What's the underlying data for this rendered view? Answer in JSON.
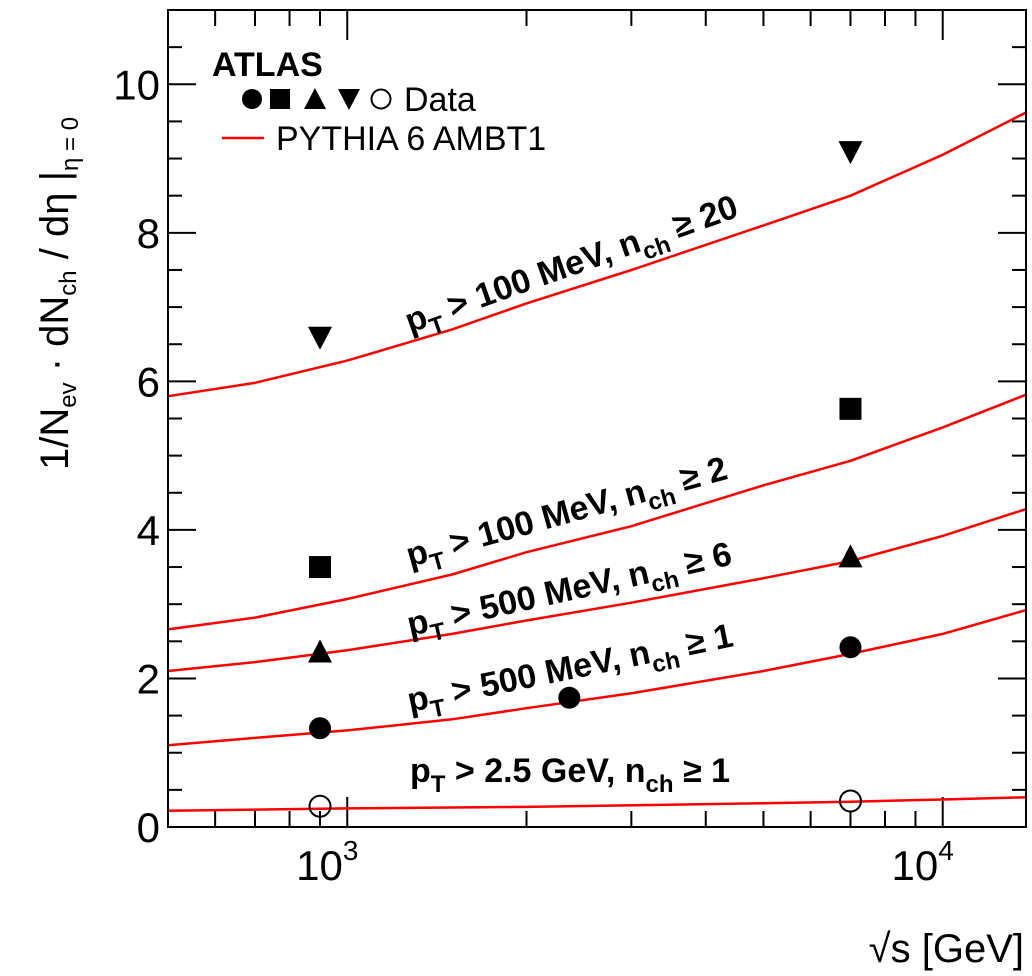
{
  "chart_data": {
    "type": "scatter",
    "title": "",
    "experiment_label": "ATLAS",
    "xlabel": "√s [GeV]",
    "xlabel_parts": {
      "radical": "√",
      "main": "s [GeV]"
    },
    "ylabel": "1/Nev · dNch / dη |η = 0",
    "ylabel_parts": {
      "a": "1/N",
      "a_sub": "ev",
      "b": " · dN",
      "b_sub": "ch",
      "c": " / dη |",
      "c_sub": "η = 0"
    },
    "x_scale": "log",
    "xlim": [
      500,
      13800
    ],
    "ylim": [
      0,
      11
    ],
    "y_ticks": [
      0,
      2,
      4,
      6,
      8,
      10
    ],
    "x_tick_labels": [
      {
        "value": 1000,
        "base": "10",
        "exp": "3"
      },
      {
        "value": 10000,
        "base": "10",
        "exp": "4"
      }
    ],
    "legend": {
      "placement": "top-left",
      "entries": [
        {
          "label": "Data",
          "markers": [
            "circle",
            "square",
            "triangle-up",
            "triangle-down",
            "open-circle"
          ]
        },
        {
          "label": "PYTHIA 6 AMBT1",
          "style": "line",
          "color": "#ff0000"
        }
      ]
    },
    "series": [
      {
        "annotation": {
          "p": "p",
          "p_sub": "T",
          "mid": " > 100 MeV, n",
          "n_sub": "ch",
          "rel": " ≥ 20"
        },
        "marker": "triangle-down",
        "data": [
          {
            "x": 900,
            "y": 6.6
          },
          {
            "x": 7000,
            "y": 9.1
          }
        ],
        "mc": [
          {
            "x": 500,
            "y": 5.8
          },
          {
            "x": 700,
            "y": 5.98
          },
          {
            "x": 1000,
            "y": 6.28
          },
          {
            "x": 1500,
            "y": 6.7
          },
          {
            "x": 2000,
            "y": 7.05
          },
          {
            "x": 3000,
            "y": 7.5
          },
          {
            "x": 5000,
            "y": 8.1
          },
          {
            "x": 7000,
            "y": 8.5
          },
          {
            "x": 10000,
            "y": 9.05
          },
          {
            "x": 13800,
            "y": 9.62
          }
        ]
      },
      {
        "annotation": {
          "p": "p",
          "p_sub": "T",
          "mid": " > 100 MeV, n",
          "n_sub": "ch",
          "rel": " ≥ 2"
        },
        "marker": "square",
        "data": [
          {
            "x": 900,
            "y": 3.5
          },
          {
            "x": 7000,
            "y": 5.63
          }
        ],
        "mc": [
          {
            "x": 500,
            "y": 2.66
          },
          {
            "x": 700,
            "y": 2.82
          },
          {
            "x": 1000,
            "y": 3.07
          },
          {
            "x": 1500,
            "y": 3.4
          },
          {
            "x": 2000,
            "y": 3.7
          },
          {
            "x": 3000,
            "y": 4.05
          },
          {
            "x": 5000,
            "y": 4.6
          },
          {
            "x": 7000,
            "y": 4.93
          },
          {
            "x": 10000,
            "y": 5.38
          },
          {
            "x": 13800,
            "y": 5.82
          }
        ]
      },
      {
        "annotation": {
          "p": "p",
          "p_sub": "T",
          "mid": " > 500 MeV, n",
          "n_sub": "ch",
          "rel": " ≥ 6"
        },
        "marker": "triangle-up",
        "data": [
          {
            "x": 900,
            "y": 2.35
          },
          {
            "x": 7000,
            "y": 3.63
          }
        ],
        "mc": [
          {
            "x": 500,
            "y": 2.1
          },
          {
            "x": 700,
            "y": 2.22
          },
          {
            "x": 1000,
            "y": 2.38
          },
          {
            "x": 1500,
            "y": 2.6
          },
          {
            "x": 2000,
            "y": 2.78
          },
          {
            "x": 3000,
            "y": 3.02
          },
          {
            "x": 5000,
            "y": 3.35
          },
          {
            "x": 7000,
            "y": 3.58
          },
          {
            "x": 10000,
            "y": 3.92
          },
          {
            "x": 13800,
            "y": 4.28
          }
        ]
      },
      {
        "annotation": {
          "p": "p",
          "p_sub": "T",
          "mid": " > 500 MeV, n",
          "n_sub": "ch",
          "rel": " ≥ 1"
        },
        "marker": "circle",
        "data": [
          {
            "x": 900,
            "y": 1.33
          },
          {
            "x": 2360,
            "y": 1.74
          },
          {
            "x": 7000,
            "y": 2.42
          }
        ],
        "mc": [
          {
            "x": 500,
            "y": 1.1
          },
          {
            "x": 700,
            "y": 1.2
          },
          {
            "x": 1000,
            "y": 1.3
          },
          {
            "x": 1500,
            "y": 1.45
          },
          {
            "x": 2000,
            "y": 1.6
          },
          {
            "x": 3000,
            "y": 1.8
          },
          {
            "x": 5000,
            "y": 2.1
          },
          {
            "x": 7000,
            "y": 2.33
          },
          {
            "x": 10000,
            "y": 2.6
          },
          {
            "x": 13800,
            "y": 2.92
          }
        ]
      },
      {
        "annotation": {
          "p": "p",
          "p_sub": "T",
          "mid": " > 2.5 GeV, n",
          "n_sub": "ch",
          "rel": " ≥ 1"
        },
        "marker": "open-circle",
        "data": [
          {
            "x": 900,
            "y": 0.28
          },
          {
            "x": 7000,
            "y": 0.35
          }
        ],
        "mc": [
          {
            "x": 500,
            "y": 0.22
          },
          {
            "x": 1000,
            "y": 0.25
          },
          {
            "x": 2000,
            "y": 0.27
          },
          {
            "x": 5000,
            "y": 0.32
          },
          {
            "x": 7000,
            "y": 0.34
          },
          {
            "x": 10000,
            "y": 0.37
          },
          {
            "x": 13800,
            "y": 0.4
          }
        ]
      }
    ]
  }
}
